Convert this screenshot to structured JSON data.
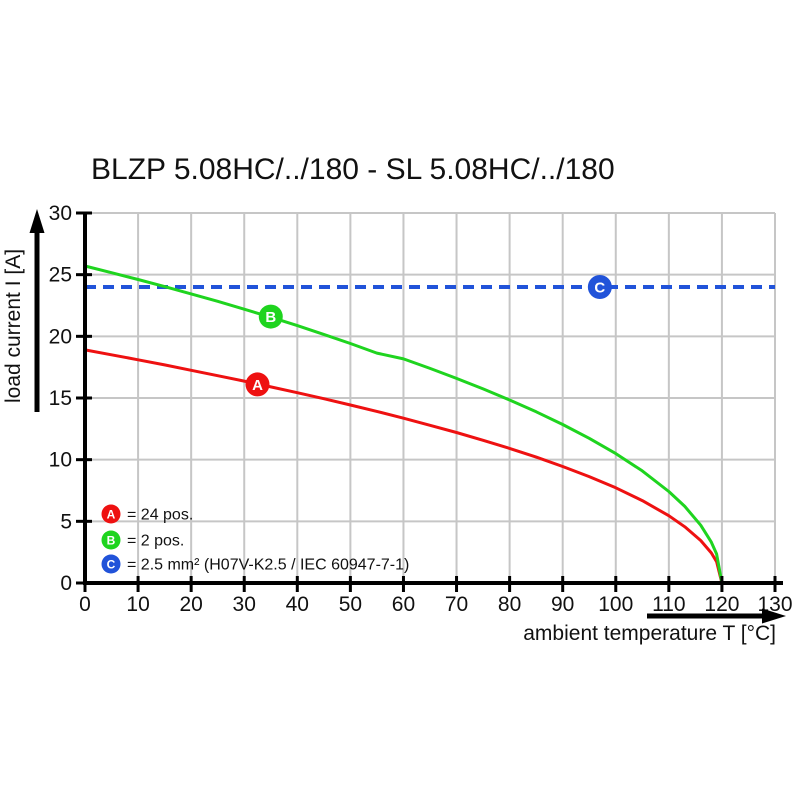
{
  "title": "BLZP 5.08HC/../180 - SL 5.08HC/../180",
  "colors": {
    "red": "#ee1111",
    "green": "#1fd41f",
    "blue": "#2153d9",
    "grid": "#c6c6c6",
    "axis": "#000000",
    "background": "#ffffff",
    "marker_text": "#ffffff",
    "text": "#111111"
  },
  "chart_data": {
    "type": "line",
    "title": "BLZP 5.08HC/../180 - SL 5.08HC/../180",
    "xlabel": "ambient temperature T [°C]",
    "ylabel": "load current I [A]",
    "xlim": [
      0,
      130
    ],
    "ylim": [
      0,
      30
    ],
    "xticks": [
      0,
      10,
      20,
      30,
      40,
      50,
      60,
      70,
      80,
      90,
      100,
      110,
      120,
      130
    ],
    "yticks": [
      0,
      5,
      10,
      15,
      20,
      25,
      30
    ],
    "grid": true,
    "legend_position": "inside-bottom-left",
    "series": [
      {
        "name": "A",
        "legend_label": "= 24 pos.",
        "color": "#ee1111",
        "line_style": "solid",
        "marker": {
          "label": "A",
          "x": 32.5,
          "y": 16.1
        },
        "points": [
          [
            0,
            18.9
          ],
          [
            5,
            18.5
          ],
          [
            10,
            18.1
          ],
          [
            15,
            17.68
          ],
          [
            20,
            17.25
          ],
          [
            25,
            16.81
          ],
          [
            30,
            16.37
          ],
          [
            35,
            15.9
          ],
          [
            40,
            15.43
          ],
          [
            45,
            14.94
          ],
          [
            50,
            14.43
          ],
          [
            55,
            13.91
          ],
          [
            60,
            13.36
          ],
          [
            65,
            12.79
          ],
          [
            70,
            12.2
          ],
          [
            75,
            11.57
          ],
          [
            80,
            10.91
          ],
          [
            85,
            10.21
          ],
          [
            90,
            9.45
          ],
          [
            95,
            8.63
          ],
          [
            100,
            7.72
          ],
          [
            105,
            6.68
          ],
          [
            110,
            5.46
          ],
          [
            113,
            4.56
          ],
          [
            116,
            3.45
          ],
          [
            118,
            2.44
          ],
          [
            119,
            1.73
          ],
          [
            120,
            0
          ]
        ]
      },
      {
        "name": "B",
        "legend_label": "= 2 pos.",
        "color": "#1fd41f",
        "line_style": "solid",
        "marker": {
          "label": "B",
          "x": 35,
          "y": 21.6
        },
        "points": [
          [
            0,
            25.7
          ],
          [
            5,
            25.16
          ],
          [
            10,
            24.61
          ],
          [
            15,
            24.03
          ],
          [
            20,
            23.44
          ],
          [
            25,
            22.84
          ],
          [
            30,
            22.2
          ],
          [
            35,
            21.55
          ],
          [
            40,
            20.87
          ],
          [
            45,
            20.16
          ],
          [
            50,
            19.42
          ],
          [
            55,
            18.64
          ],
          [
            60,
            18.17
          ],
          [
            65,
            17.4
          ],
          [
            70,
            16.59
          ],
          [
            75,
            15.74
          ],
          [
            80,
            14.84
          ],
          [
            85,
            13.88
          ],
          [
            90,
            12.85
          ],
          [
            95,
            11.73
          ],
          [
            100,
            10.49
          ],
          [
            105,
            9.09
          ],
          [
            110,
            7.42
          ],
          [
            113,
            6.21
          ],
          [
            116,
            4.69
          ],
          [
            118,
            3.32
          ],
          [
            119,
            2.35
          ],
          [
            120,
            0
          ]
        ]
      },
      {
        "name": "C",
        "legend_label": "= 2.5 mm² (H07V-K2.5 / IEC 60947-7-1)",
        "color": "#2153d9",
        "line_style": "dashed",
        "marker": {
          "label": "C",
          "x": 97,
          "y": 24
        },
        "points": [
          [
            0,
            24
          ],
          [
            130,
            24
          ]
        ]
      }
    ]
  }
}
